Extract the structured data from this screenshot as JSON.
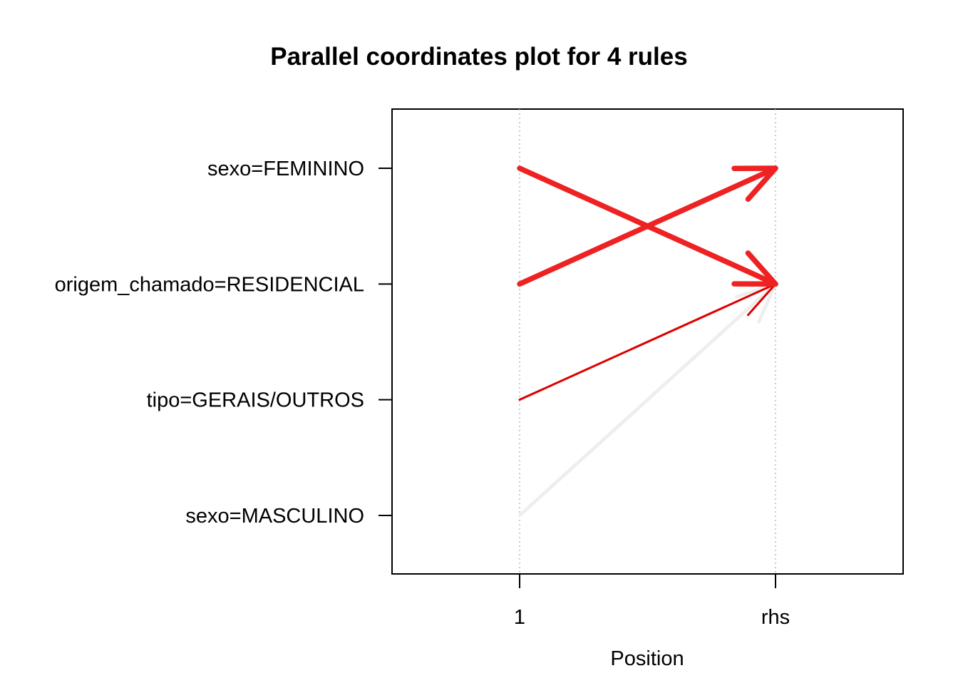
{
  "chart_data": {
    "type": "parallel-coordinates",
    "title": "Parallel coordinates plot for 4 rules",
    "xlabel": "Position",
    "ylabel": "",
    "x_categories": [
      "1",
      "rhs"
    ],
    "y_items": [
      "sexo=FEMININO",
      "origem_chamado=RESIDENCIAL",
      "tipo=GERAIS/OUTROS",
      "sexo=MASCULINO"
    ],
    "grid": "vertical-dotted",
    "rules": [
      {
        "lhs": "sexo=FEMININO",
        "rhs": "origem_chamado=RESIDENCIAL",
        "color": "#ee2222",
        "weight": 1.0
      },
      {
        "lhs": "origem_chamado=RESIDENCIAL",
        "rhs": "sexo=FEMININO",
        "color": "#ee2222",
        "weight": 1.0
      },
      {
        "lhs": "tipo=GERAIS/OUTROS",
        "rhs": "origem_chamado=RESIDENCIAL",
        "color": "#dd0000",
        "weight": 0.25
      },
      {
        "lhs": "sexo=MASCULINO",
        "rhs": "origem_chamado=RESIDENCIAL",
        "color": "#eeeeee",
        "weight": 0.55
      }
    ]
  }
}
